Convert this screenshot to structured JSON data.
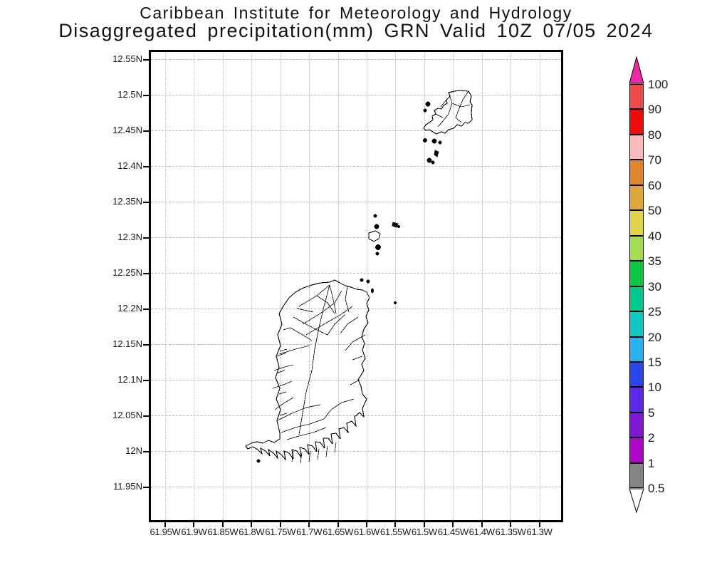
{
  "title": {
    "line1": "Caribbean Institute for Meteorology and Hydrology",
    "line2": "Disaggregated precipitation(mm) GRN Valid 10Z 07/05 2024"
  },
  "map": {
    "y_axis_labels": [
      "12.55N",
      "12.5N",
      "12.45N",
      "12.4N",
      "12.35N",
      "12.3N",
      "12.25N",
      "12.2N",
      "12.15N",
      "12.1N",
      "12.05N",
      "12N",
      "11.95N"
    ],
    "x_axis_labels": [
      "61.95W",
      "61.9W",
      "61.85W",
      "61.8W",
      "61.75W",
      "61.7W",
      "61.65W",
      "61.6W",
      "61.55W",
      "61.5W",
      "61.45W",
      "61.4W",
      "61.35W",
      "61.3W"
    ]
  },
  "colorbar": {
    "unit": "mm",
    "tick_labels": [
      "100",
      "90",
      "80",
      "70",
      "60",
      "50",
      "40",
      "35",
      "30",
      "25",
      "20",
      "15",
      "10",
      "5",
      "2",
      "1",
      "0.5"
    ],
    "segments": [
      {
        "range": "90-100",
        "color": "#f04b4b"
      },
      {
        "range": "80-90",
        "color": "#ec0c0c"
      },
      {
        "range": "70-80",
        "color": "#f9babd"
      },
      {
        "range": "60-70",
        "color": "#e2862d"
      },
      {
        "range": "50-60",
        "color": "#dda73b"
      },
      {
        "range": "40-50",
        "color": "#dfd44b"
      },
      {
        "range": "35-40",
        "color": "#a6dc52"
      },
      {
        "range": "30-35",
        "color": "#0cc845"
      },
      {
        "range": "25-30",
        "color": "#00c88e"
      },
      {
        "range": "20-25",
        "color": "#10c6c0"
      },
      {
        "range": "15-20",
        "color": "#2bb2ee"
      },
      {
        "range": "10-15",
        "color": "#2a45e8"
      },
      {
        "range": "5-10",
        "color": "#5a2ae8"
      },
      {
        "range": "2-5",
        "color": "#7f17d4"
      },
      {
        "range": "1-2",
        "color": "#ae06c8"
      },
      {
        "range": "0.5-1",
        "color": "#848484"
      }
    ],
    "arrow_top_color": "#ee2aa2",
    "arrow_bottom_color": "#ffffff"
  }
}
